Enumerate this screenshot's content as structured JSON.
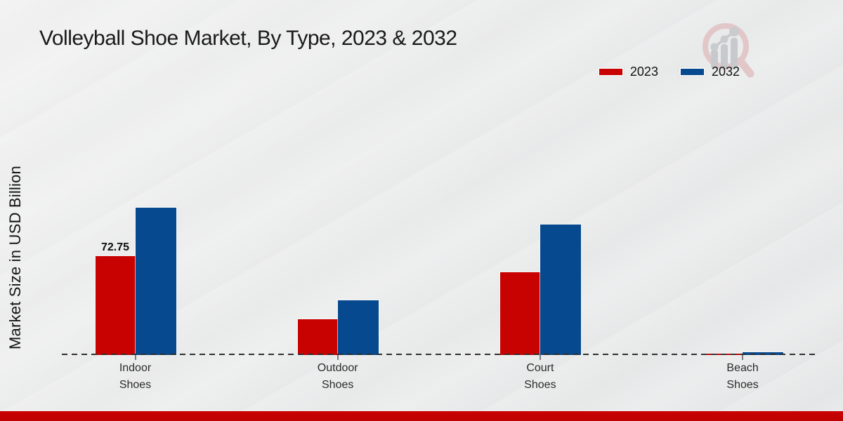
{
  "header": {
    "title": "Volleyball Shoe Market, By Type, 2023 & 2032"
  },
  "legend": [
    {
      "label": "2023",
      "color": "#c80101"
    },
    {
      "label": "2032",
      "color": "#06498e"
    }
  ],
  "watermark": {
    "name": "market-research-future-logo"
  },
  "chart_data": {
    "type": "bar",
    "title": "Volleyball Shoe Market, By Type, 2023 & 2032",
    "xlabel": "",
    "ylabel": "Market Size in USD Billion",
    "categories": [
      "Indoor\nShoes",
      "Outdoor\nShoes",
      "Court\nShoes",
      "Beach\nShoes"
    ],
    "series": [
      {
        "name": "2023",
        "color": "#c80101",
        "values": [
          72.75,
          26.3,
          60.9,
          1.2
        ]
      },
      {
        "name": "2032",
        "color": "#06498e",
        "values": [
          108.3,
          40.2,
          96.0,
          2.3
        ]
      }
    ],
    "bar_labels": [
      {
        "series": "2023",
        "category_index": 0,
        "text": "72.75"
      }
    ],
    "ylim": [
      0,
      120
    ],
    "y_axis_ticks_visible": false,
    "grid": false,
    "zero_line_style": "dashed",
    "legend_position": "top-right"
  },
  "colors": {
    "series_2023": "#c80101",
    "series_2032": "#06498e",
    "footer_band": "#c00000",
    "background": "#e9eaea",
    "zero_line": "#2f2f2f",
    "text": "#1a1a1a"
  }
}
